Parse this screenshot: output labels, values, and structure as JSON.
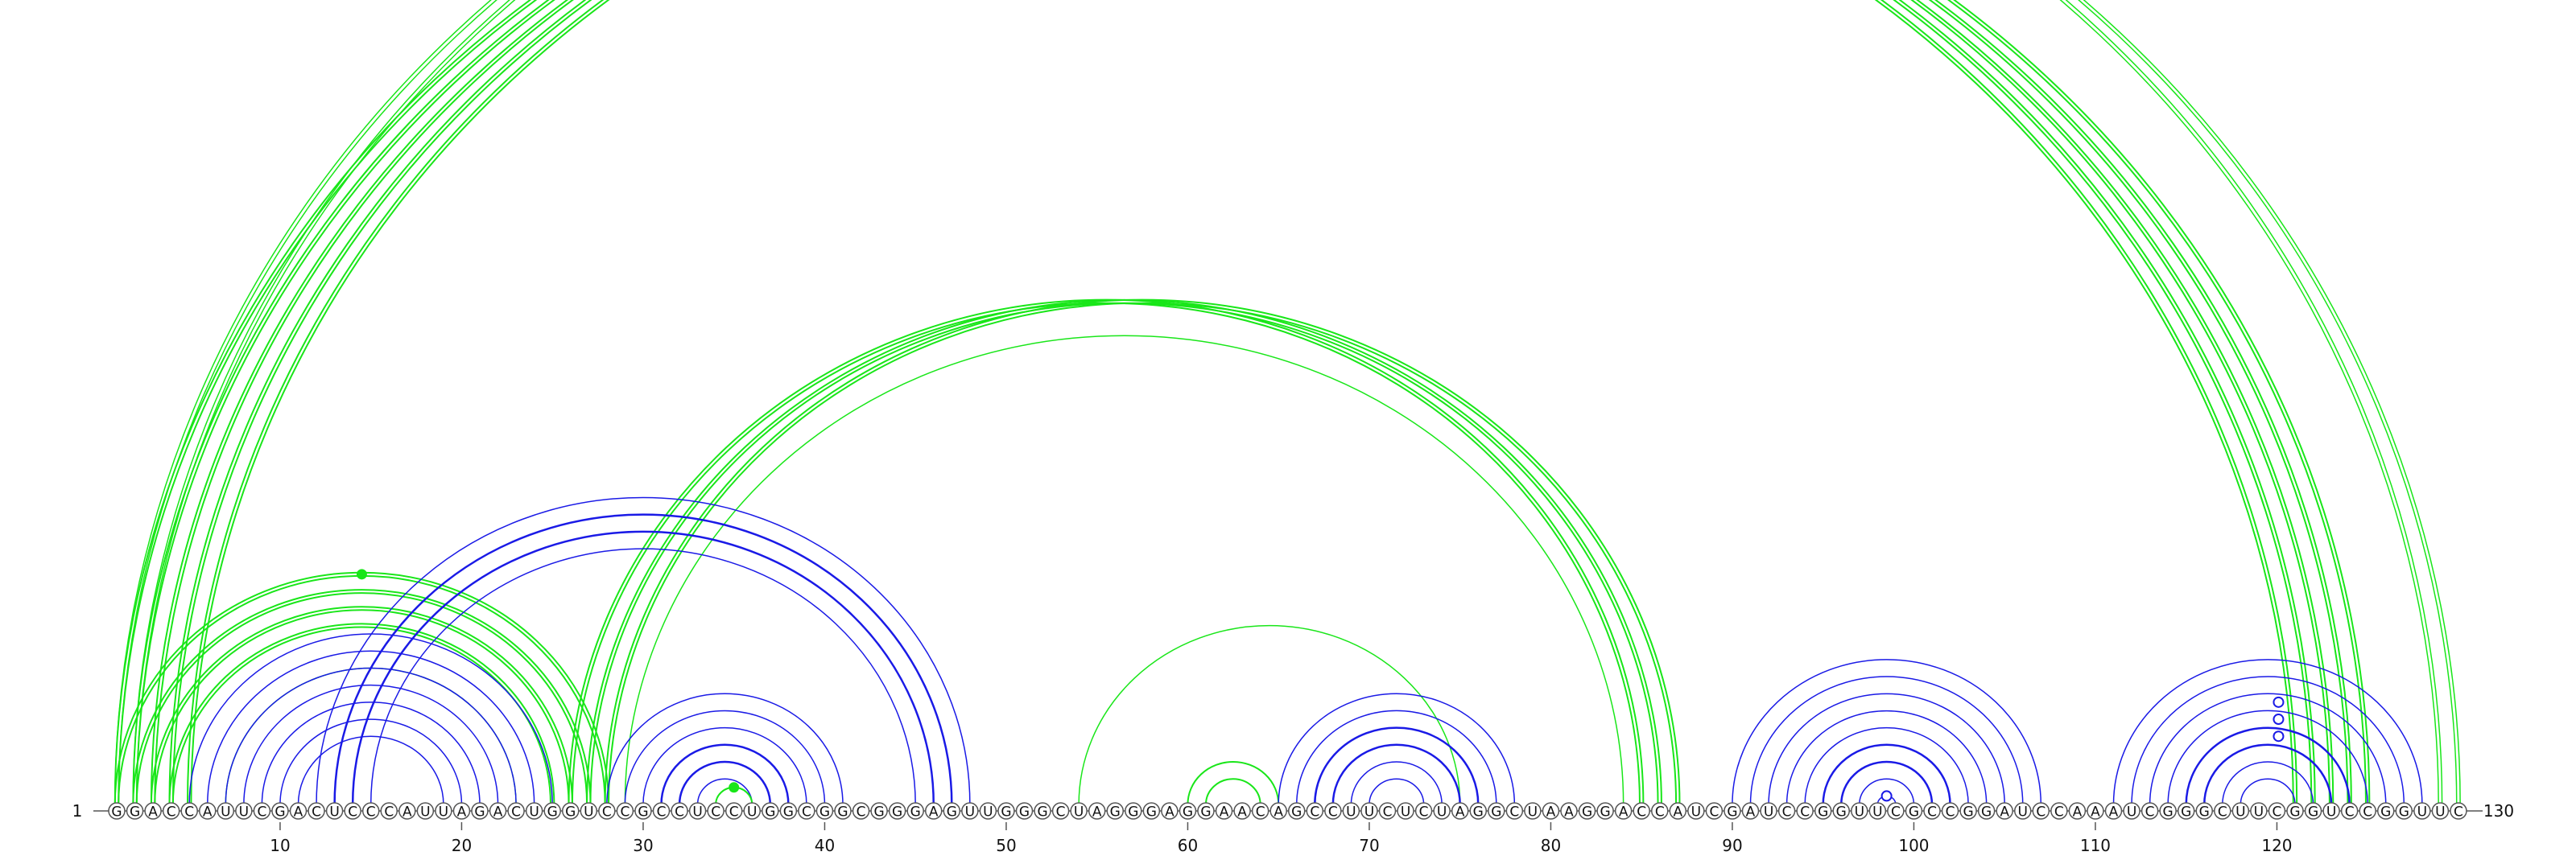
{
  "diagram": {
    "type": "rna-arc-diagram",
    "sequence": "GGACCAUUCGACUCCCAUUAGACUGGUCCGCCUCCUGGCGGCGGGAGUUGGGCUAGGGAGGAACAGCCUUCUCUAGGCUAAGGACCAUCGAUCCGGUUCGCCGGAUCCAAAUCGGGCUUCGGUCCGGUUC",
    "start_label": "1",
    "end_label": "130",
    "tick_labels": [
      "10",
      "20",
      "30",
      "40",
      "50",
      "60",
      "70",
      "80",
      "90",
      "100",
      "110",
      "120"
    ],
    "colors": {
      "blue": "#1a1ae6",
      "green": "#19e619",
      "circle_stroke": "#555555",
      "axis": "#555555",
      "text": "#111111"
    },
    "arc_groups": [
      {
        "color": "green",
        "strands": [
          [
            1,
            121
          ],
          [
            2,
            122
          ],
          [
            3,
            123
          ],
          [
            4,
            124
          ],
          [
            5,
            125
          ]
        ],
        "lines": 2,
        "width": 2
      },
      {
        "color": "green",
        "strands": [
          [
            1,
            129
          ],
          [
            2,
            130
          ]
        ],
        "lines": 2,
        "width": 1.5,
        "marker": "open"
      },
      {
        "color": "green",
        "strands": [
          [
            26,
            85
          ],
          [
            27,
            86
          ],
          [
            28,
            87
          ]
        ],
        "lines": 2,
        "width": 2
      },
      {
        "color": "green",
        "strands": [
          [
            29,
            84
          ]
        ],
        "lines": 1,
        "width": 1.5
      },
      {
        "color": "green",
        "strands": [
          [
            1,
            28
          ],
          [
            2,
            27
          ],
          [
            3,
            26
          ],
          [
            4,
            25
          ]
        ],
        "lines": 2,
        "width": 2,
        "marker": "filled"
      },
      {
        "color": "green",
        "strands": [
          [
            7,
            23
          ]
        ],
        "lines": 1,
        "width": 1.5
      },
      {
        "color": "blue",
        "strands": [
          [
            5,
            25
          ],
          [
            6,
            24
          ],
          [
            7,
            23
          ],
          [
            8,
            22
          ],
          [
            9,
            21
          ],
          [
            10,
            20
          ],
          [
            11,
            19
          ]
        ],
        "lines": 1,
        "width": 1.5
      },
      {
        "color": "blue",
        "strands": [
          [
            12,
            48
          ],
          [
            13,
            47
          ],
          [
            14,
            46
          ],
          [
            15,
            45
          ]
        ],
        "lines": 1,
        "width": 1.5
      },
      {
        "color": "blue",
        "strands": [
          [
            13,
            47
          ],
          [
            14,
            46
          ]
        ],
        "lines": 1,
        "width": 2.5
      },
      {
        "color": "blue",
        "strands": [
          [
            28,
            41
          ],
          [
            29,
            40
          ],
          [
            30,
            39
          ],
          [
            31,
            38
          ],
          [
            32,
            37
          ],
          [
            33,
            36
          ]
        ],
        "lines": 1,
        "width": 1.5
      },
      {
        "color": "blue",
        "strands": [
          [
            31,
            38
          ],
          [
            32,
            37
          ]
        ],
        "lines": 1,
        "width": 2.5
      },
      {
        "color": "green",
        "strands": [
          [
            34,
            36
          ]
        ],
        "lines": 1,
        "width": 2,
        "marker": "filled"
      },
      {
        "color": "green",
        "strands": [
          [
            54,
            75
          ]
        ],
        "lines": 1,
        "width": 1.5
      },
      {
        "color": "green",
        "strands": [
          [
            60,
            65
          ],
          [
            61,
            64
          ]
        ],
        "lines": 1,
        "width": 2
      },
      {
        "color": "blue",
        "strands": [
          [
            65,
            78
          ],
          [
            66,
            77
          ],
          [
            67,
            76
          ],
          [
            68,
            75
          ],
          [
            69,
            74
          ],
          [
            70,
            73
          ]
        ],
        "lines": 1,
        "width": 1.5
      },
      {
        "color": "blue",
        "strands": [
          [
            67,
            76
          ],
          [
            68,
            75
          ]
        ],
        "lines": 1,
        "width": 2.5
      },
      {
        "color": "blue",
        "strands": [
          [
            90,
            107
          ],
          [
            91,
            106
          ],
          [
            92,
            105
          ],
          [
            93,
            104
          ],
          [
            94,
            103
          ],
          [
            95,
            102
          ],
          [
            96,
            101
          ],
          [
            97,
            100
          ],
          [
            98,
            99
          ]
        ],
        "lines": 1,
        "width": 1.5,
        "marker": "open-top"
      },
      {
        "color": "blue",
        "strands": [
          [
            95,
            102
          ],
          [
            96,
            101
          ]
        ],
        "lines": 1,
        "width": 2.5
      },
      {
        "color": "blue",
        "strands": [
          [
            111,
            128
          ],
          [
            112,
            127
          ],
          [
            113,
            126
          ],
          [
            114,
            125
          ],
          [
            115,
            124
          ],
          [
            116,
            123
          ],
          [
            117,
            122
          ],
          [
            118,
            121
          ]
        ],
        "lines": 1,
        "width": 1.5
      },
      {
        "color": "blue",
        "strands": [
          [
            115,
            124
          ],
          [
            116,
            123
          ]
        ],
        "lines": 1,
        "width": 2.5
      }
    ],
    "open_markers": [
      [
        119,
        121
      ],
      [
        119,
        123
      ],
      [
        119,
        125
      ]
    ]
  }
}
